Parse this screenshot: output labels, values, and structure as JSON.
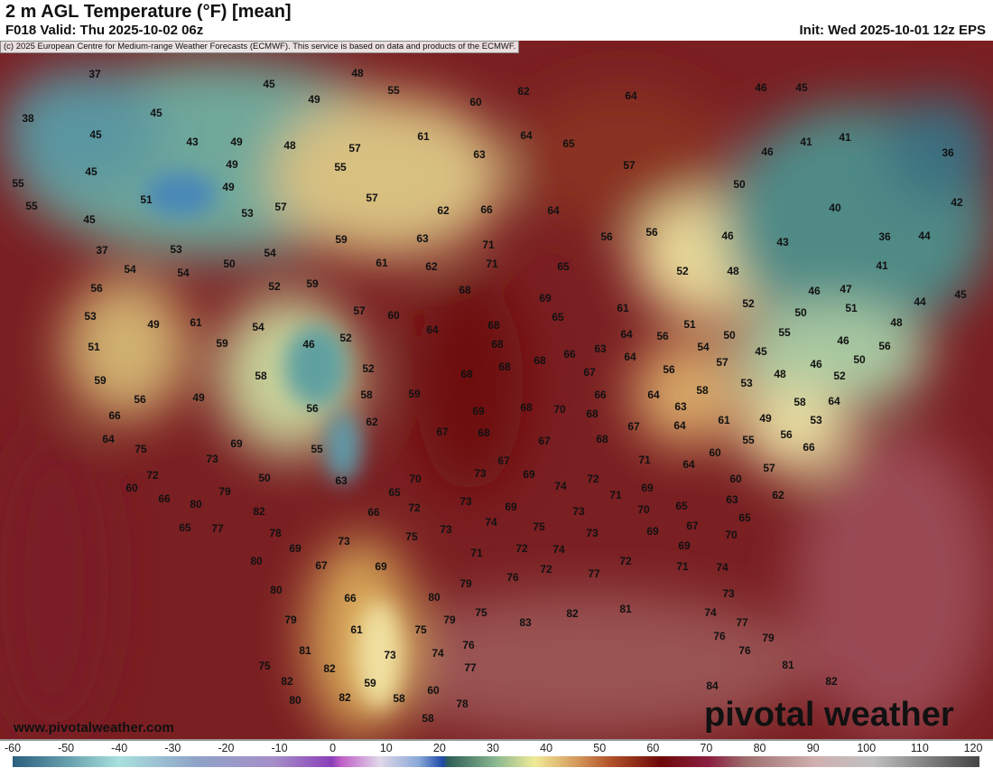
{
  "header": {
    "title": "2 m AGL Temperature (°F) [mean]",
    "valid": "F018 Valid: Thu 2025-10-02 06z",
    "init": "Init: Wed 2025-10-01 12z EPS"
  },
  "copyright": "(c) 2025 European Centre for Medium-range Weather Forecasts (ECMWF). This service is based on data and products of the ECMWF.",
  "footer": {
    "website": "www.pivotalweather.com",
    "logo": "pivotal weather"
  },
  "colorbar": {
    "unit": "°F",
    "ticks": [
      "-60",
      "-50",
      "-40",
      "-30",
      "-20",
      "-10",
      "0",
      "10",
      "20",
      "30",
      "40",
      "50",
      "60",
      "70",
      "80",
      "90",
      "100",
      "110",
      "120"
    ]
  },
  "temperature_labels": [
    37,
    45,
    48,
    55,
    62,
    64,
    46,
    45,
    38,
    45,
    49,
    60,
    45,
    43,
    49,
    48,
    57,
    61,
    64,
    65,
    41,
    41,
    36,
    45,
    49,
    55,
    63,
    57,
    46,
    55,
    51,
    49,
    53,
    57,
    57,
    62,
    66,
    64,
    50,
    40,
    42,
    55,
    45,
    56,
    56,
    46,
    43,
    36,
    44,
    59,
    63,
    71,
    37,
    53,
    54,
    61,
    62,
    71,
    65,
    52,
    48,
    41,
    54,
    54,
    50,
    52,
    59,
    68,
    69,
    46,
    47,
    44,
    45,
    56,
    53,
    49,
    61,
    54,
    57,
    60,
    64,
    68,
    65,
    61,
    51,
    52,
    50,
    51,
    48,
    56,
    50,
    55,
    46,
    52,
    64,
    63,
    66,
    68,
    51,
    59,
    68,
    68,
    68,
    54,
    45,
    57,
    46,
    50,
    56,
    46,
    59,
    49,
    58,
    52,
    56,
    48,
    53,
    52,
    67,
    64,
    56,
    58,
    59,
    66,
    64,
    58,
    64,
    56,
    62,
    69,
    68,
    70,
    68,
    63,
    61,
    58,
    53,
    49,
    66,
    64,
    67,
    68,
    67,
    68,
    67,
    64,
    55,
    56,
    66,
    75,
    69,
    55,
    73,
    60,
    71,
    64,
    57,
    72,
    50,
    63,
    70,
    73,
    67,
    69,
    72,
    74,
    60,
    60,
    79,
    65,
    71,
    69,
    65,
    63,
    62,
    66,
    80,
    72,
    73,
    69,
    74,
    82,
    66,
    70,
    65,
    67,
    75,
    73,
    73,
    73,
    75,
    65,
    77,
    78,
    69,
    73,
    69,
    69,
    70,
    74,
    72,
    71,
    80,
    67,
    69,
    71,
    72,
    77,
    74,
    76,
    72,
    79,
    80,
    66,
    80,
    83,
    82,
    81,
    73,
    74,
    77,
    79,
    61,
    75,
    79,
    75,
    76,
    79,
    81,
    73,
    74,
    76,
    76,
    75,
    82,
    77,
    81,
    82,
    59,
    60,
    80,
    82,
    58,
    78,
    82,
    84,
    58
  ]
}
